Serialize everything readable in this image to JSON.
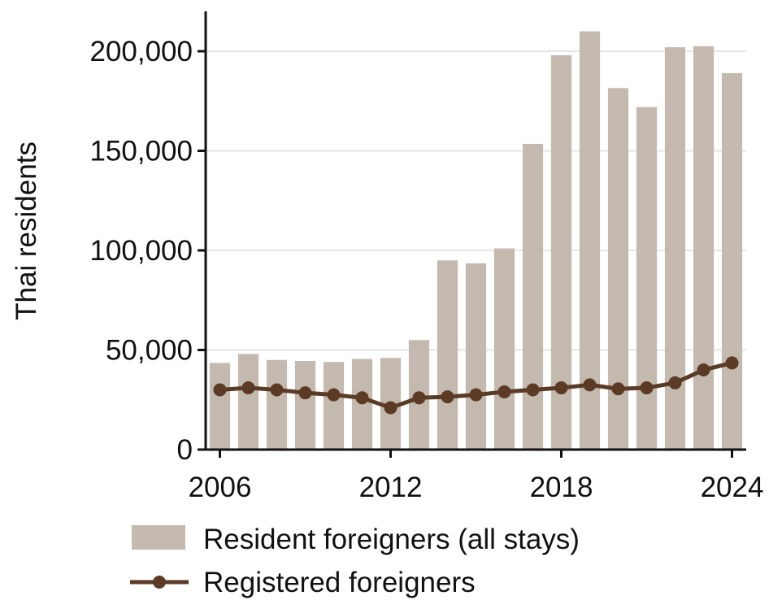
{
  "chart_data": {
    "type": "bar",
    "ylabel": "Thai residents",
    "xlabel": "",
    "ylim": [
      0,
      220000
    ],
    "xlim": [
      2005.5,
      2024.5
    ],
    "yticks": [
      0,
      50000,
      100000,
      150000,
      200000
    ],
    "ytick_labels": [
      "0",
      "50,000",
      "100,000",
      "150,000",
      "200,000"
    ],
    "xticks": [
      2006,
      2012,
      2018,
      2024
    ],
    "xtick_labels": [
      "2006",
      "2012",
      "2018",
      "2024"
    ],
    "grid": "horizontal",
    "legend_position": "bottom",
    "years": [
      2006,
      2007,
      2008,
      2009,
      2010,
      2011,
      2012,
      2013,
      2014,
      2015,
      2016,
      2017,
      2018,
      2019,
      2020,
      2021,
      2022,
      2023,
      2024
    ],
    "series": [
      {
        "name": "Resident foreigners (all stays)",
        "kind": "bar",
        "color": "#c4b9ae",
        "values": [
          43500,
          48000,
          45000,
          44500,
          44000,
          45500,
          46000,
          55000,
          95000,
          93500,
          101000,
          153500,
          198000,
          210000,
          181500,
          172000,
          202000,
          202500,
          189000
        ]
      },
      {
        "name": "Registered foreigners",
        "kind": "line",
        "color": "#5b3a26",
        "values": [
          30000,
          31000,
          30000,
          28500,
          27500,
          26000,
          21000,
          26000,
          26500,
          27500,
          29000,
          30000,
          31000,
          32500,
          30500,
          31000,
          33500,
          40000,
          43500
        ]
      }
    ]
  }
}
